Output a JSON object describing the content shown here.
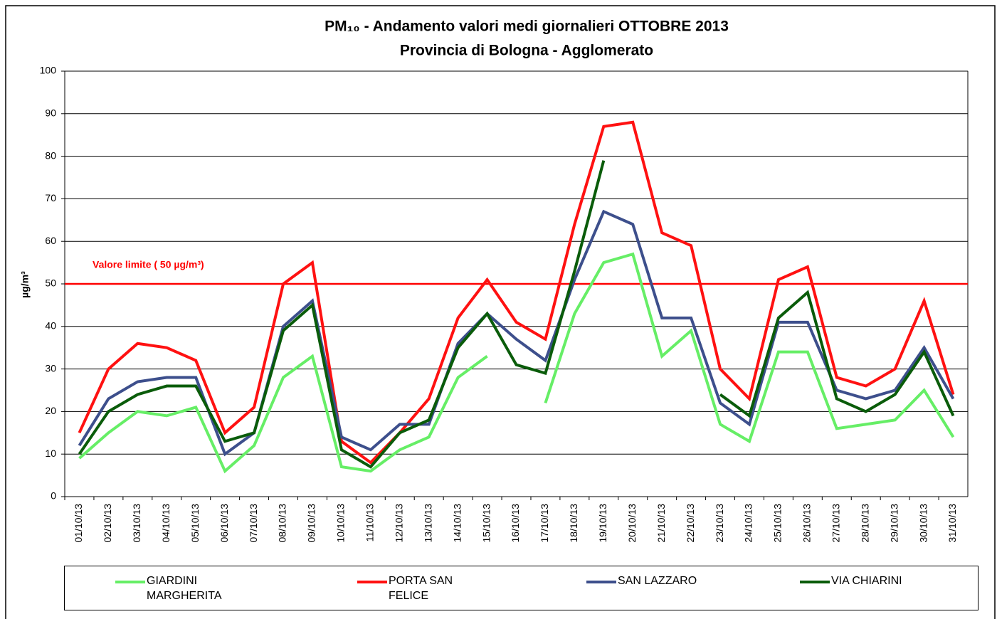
{
  "chart_data": {
    "type": "line",
    "title": "PM₁₀ - Andamento valori medi giornalieri OTTOBRE 2013",
    "subtitle": "Provincia di Bologna - Agglomerato",
    "y_label": "µg/m³",
    "categories": [
      "01/10/13",
      "02/10/13",
      "03/10/13",
      "04/10/13",
      "05/10/13",
      "06/10/13",
      "07/10/13",
      "08/10/13",
      "09/10/13",
      "10/10/13",
      "11/10/13",
      "12/10/13",
      "13/10/13",
      "14/10/13",
      "15/10/13",
      "16/10/13",
      "17/10/13",
      "18/10/13",
      "19/10/13",
      "20/10/13",
      "21/10/13",
      "22/10/13",
      "23/10/13",
      "24/10/13",
      "25/10/13",
      "26/10/13",
      "27/10/13",
      "28/10/13",
      "29/10/13",
      "30/10/13",
      "31/10/13"
    ],
    "series": [
      {
        "name": "GIARDINI MARGHERITA",
        "color": "#66ee66",
        "values": [
          9,
          15,
          20,
          19,
          21,
          6,
          12,
          28,
          33,
          7,
          6,
          11,
          14,
          28,
          33,
          null,
          22,
          43,
          55,
          57,
          33,
          39,
          17,
          13,
          34,
          34,
          16,
          17,
          18,
          25,
          14
        ]
      },
      {
        "name": "PORTA SAN FELICE",
        "color": "#ff1111",
        "values": [
          15,
          30,
          36,
          35,
          32,
          15,
          21,
          50,
          55,
          13,
          8,
          15,
          23,
          42,
          51,
          41,
          37,
          64,
          87,
          88,
          62,
          59,
          30,
          23,
          51,
          54,
          28,
          26,
          30,
          46,
          24
        ]
      },
      {
        "name": "SAN LAZZARO",
        "color": "#3d4f8c",
        "values": [
          12,
          23,
          27,
          28,
          28,
          10,
          15,
          40,
          46,
          14,
          11,
          17,
          17,
          36,
          43,
          37,
          32,
          51,
          67,
          64,
          42,
          42,
          22,
          17,
          41,
          41,
          25,
          23,
          25,
          35,
          23
        ]
      },
      {
        "name": "VIA CHIARINI",
        "color": "#0a5c0a",
        "values": [
          10,
          20,
          24,
          26,
          26,
          13,
          15,
          39,
          45,
          11,
          7,
          15,
          18,
          35,
          43,
          31,
          29,
          53,
          79,
          null,
          null,
          null,
          24,
          19,
          42,
          48,
          23,
          20,
          24,
          34,
          19
        ]
      }
    ],
    "ref_line": {
      "value": 50,
      "label": "Valore limite  ( 50 µg/m³)",
      "color": "#ff0000"
    },
    "ylim": [
      0,
      100
    ],
    "yticks": [
      0,
      10,
      20,
      30,
      40,
      50,
      60,
      70,
      80,
      90,
      100
    ],
    "grid": true
  }
}
